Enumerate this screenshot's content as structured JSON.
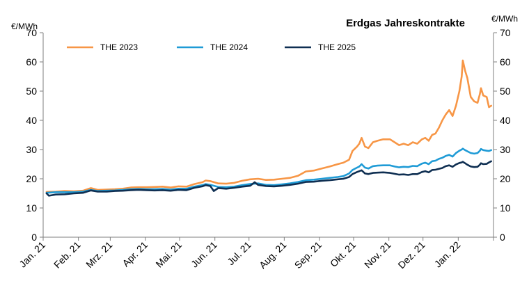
{
  "chart_data": {
    "type": "line",
    "title": "Erdgas Jahreskontrakte",
    "ylabel_left": "€/MWh",
    "ylabel_right": "€/MWh",
    "ylim": [
      0,
      70
    ],
    "yticks": [
      0,
      10,
      20,
      30,
      40,
      50,
      60,
      70
    ],
    "x_tick_labels": [
      "Jan. 21",
      "Feb. 21",
      "Mrz. 21",
      "Apr. 21",
      "Mai. 21",
      "Jun. 21",
      "Jul. 21",
      "Aug. 21",
      "Sep. 21",
      "Okt. 21",
      "Nov. 21",
      "Dez. 21",
      "Jan. 22"
    ],
    "x_range": [
      "2021-01-01",
      "2022-02-01"
    ],
    "legend_position": "top-left",
    "grid": false,
    "series": [
      {
        "name": "THE 2023",
        "color": "#f79646",
        "points": [
          [
            "2021-01-04",
            15.5
          ],
          [
            "2021-01-12",
            15.6
          ],
          [
            "2021-01-20",
            15.8
          ],
          [
            "2021-01-28",
            15.7
          ],
          [
            "2021-02-05",
            15.9
          ],
          [
            "2021-02-12",
            16.8
          ],
          [
            "2021-02-18",
            16.2
          ],
          [
            "2021-02-26",
            16.3
          ],
          [
            "2021-03-05",
            16.4
          ],
          [
            "2021-03-12",
            16.6
          ],
          [
            "2021-03-19",
            17.0
          ],
          [
            "2021-03-26",
            17.1
          ],
          [
            "2021-04-02",
            17.1
          ],
          [
            "2021-04-09",
            17.2
          ],
          [
            "2021-04-16",
            17.3
          ],
          [
            "2021-04-23",
            17.0
          ],
          [
            "2021-04-30",
            17.4
          ],
          [
            "2021-05-07",
            17.3
          ],
          [
            "2021-05-14",
            18.2
          ],
          [
            "2021-05-21",
            18.8
          ],
          [
            "2021-05-24",
            19.4
          ],
          [
            "2021-05-28",
            19.2
          ],
          [
            "2021-06-04",
            18.4
          ],
          [
            "2021-06-11",
            18.3
          ],
          [
            "2021-06-18",
            18.6
          ],
          [
            "2021-06-25",
            19.3
          ],
          [
            "2021-07-02",
            19.8
          ],
          [
            "2021-07-09",
            20.0
          ],
          [
            "2021-07-16",
            19.6
          ],
          [
            "2021-07-23",
            19.7
          ],
          [
            "2021-07-30",
            20.0
          ],
          [
            "2021-08-06",
            20.3
          ],
          [
            "2021-08-13",
            21.0
          ],
          [
            "2021-08-20",
            22.5
          ],
          [
            "2021-08-27",
            22.8
          ],
          [
            "2021-09-03",
            23.5
          ],
          [
            "2021-09-10",
            24.2
          ],
          [
            "2021-09-17",
            25.0
          ],
          [
            "2021-09-22",
            25.5
          ],
          [
            "2021-09-27",
            26.5
          ],
          [
            "2021-09-30",
            29.5
          ],
          [
            "2021-10-04",
            31.0
          ],
          [
            "2021-10-06",
            32.0
          ],
          [
            "2021-10-08",
            34.0
          ],
          [
            "2021-10-11",
            31.0
          ],
          [
            "2021-10-14",
            30.5
          ],
          [
            "2021-10-18",
            32.5
          ],
          [
            "2021-10-22",
            33.0
          ],
          [
            "2021-10-27",
            33.5
          ],
          [
            "2021-11-02",
            33.5
          ],
          [
            "2021-11-06",
            32.5
          ],
          [
            "2021-11-10",
            31.5
          ],
          [
            "2021-11-14",
            32.0
          ],
          [
            "2021-11-18",
            31.5
          ],
          [
            "2021-11-22",
            32.5
          ],
          [
            "2021-11-26",
            32.0
          ],
          [
            "2021-11-30",
            33.5
          ],
          [
            "2021-12-03",
            34.0
          ],
          [
            "2021-12-06",
            33.0
          ],
          [
            "2021-12-09",
            35.0
          ],
          [
            "2021-12-12",
            35.5
          ],
          [
            "2021-12-15",
            37.5
          ],
          [
            "2021-12-18",
            40.0
          ],
          [
            "2021-12-21",
            42.0
          ],
          [
            "2021-12-24",
            43.5
          ],
          [
            "2021-12-27",
            41.5
          ],
          [
            "2021-12-30",
            45.0
          ],
          [
            "2022-01-02",
            50.0
          ],
          [
            "2022-01-04",
            55.0
          ],
          [
            "2022-01-05",
            60.5
          ],
          [
            "2022-01-07",
            57.0
          ],
          [
            "2022-01-09",
            54.5
          ],
          [
            "2022-01-12",
            48.0
          ],
          [
            "2022-01-15",
            46.5
          ],
          [
            "2022-01-18",
            46.0
          ],
          [
            "2022-01-20",
            49.0
          ],
          [
            "2022-01-21",
            51.0
          ],
          [
            "2022-01-23",
            48.5
          ],
          [
            "2022-01-26",
            48.0
          ],
          [
            "2022-01-28",
            44.5
          ],
          [
            "2022-01-30",
            45.0
          ]
        ]
      },
      {
        "name": "THE 2024",
        "color": "#1f9bd6",
        "points": [
          [
            "2021-01-04",
            15.2
          ],
          [
            "2021-01-12",
            15.4
          ],
          [
            "2021-01-20",
            15.4
          ],
          [
            "2021-01-28",
            15.4
          ],
          [
            "2021-02-05",
            15.6
          ],
          [
            "2021-02-12",
            16.2
          ],
          [
            "2021-02-18",
            15.8
          ],
          [
            "2021-02-26",
            15.9
          ],
          [
            "2021-03-05",
            16.0
          ],
          [
            "2021-03-12",
            16.2
          ],
          [
            "2021-03-19",
            16.4
          ],
          [
            "2021-03-26",
            16.5
          ],
          [
            "2021-04-02",
            16.4
          ],
          [
            "2021-04-09",
            16.4
          ],
          [
            "2021-04-16",
            16.5
          ],
          [
            "2021-04-23",
            16.3
          ],
          [
            "2021-04-30",
            16.6
          ],
          [
            "2021-05-07",
            16.6
          ],
          [
            "2021-05-14",
            17.3
          ],
          [
            "2021-05-21",
            17.8
          ],
          [
            "2021-05-24",
            18.2
          ],
          [
            "2021-05-28",
            17.9
          ],
          [
            "2021-06-04",
            17.2
          ],
          [
            "2021-06-11",
            17.1
          ],
          [
            "2021-06-18",
            17.3
          ],
          [
            "2021-06-25",
            17.8
          ],
          [
            "2021-07-02",
            18.2
          ],
          [
            "2021-07-09",
            18.4
          ],
          [
            "2021-07-16",
            17.9
          ],
          [
            "2021-07-23",
            17.8
          ],
          [
            "2021-07-30",
            18.1
          ],
          [
            "2021-08-06",
            18.4
          ],
          [
            "2021-08-13",
            18.9
          ],
          [
            "2021-08-20",
            19.5
          ],
          [
            "2021-08-27",
            19.7
          ],
          [
            "2021-09-03",
            20.0
          ],
          [
            "2021-09-10",
            20.3
          ],
          [
            "2021-09-17",
            20.6
          ],
          [
            "2021-09-22",
            20.9
          ],
          [
            "2021-09-27",
            21.8
          ],
          [
            "2021-09-30",
            23.0
          ],
          [
            "2021-10-04",
            23.8
          ],
          [
            "2021-10-06",
            24.2
          ],
          [
            "2021-10-08",
            25.0
          ],
          [
            "2021-10-11",
            23.8
          ],
          [
            "2021-10-14",
            23.5
          ],
          [
            "2021-10-18",
            24.3
          ],
          [
            "2021-10-22",
            24.5
          ],
          [
            "2021-10-27",
            24.6
          ],
          [
            "2021-11-02",
            24.6
          ],
          [
            "2021-11-06",
            24.2
          ],
          [
            "2021-11-10",
            23.9
          ],
          [
            "2021-11-14",
            24.1
          ],
          [
            "2021-11-18",
            24.0
          ],
          [
            "2021-11-22",
            24.4
          ],
          [
            "2021-11-26",
            24.3
          ],
          [
            "2021-11-30",
            25.2
          ],
          [
            "2021-12-03",
            25.5
          ],
          [
            "2021-12-06",
            25.0
          ],
          [
            "2021-12-09",
            26.0
          ],
          [
            "2021-12-12",
            26.2
          ],
          [
            "2021-12-15",
            26.8
          ],
          [
            "2021-12-18",
            27.2
          ],
          [
            "2021-12-21",
            27.8
          ],
          [
            "2021-12-24",
            28.2
          ],
          [
            "2021-12-27",
            27.6
          ],
          [
            "2021-12-30",
            28.8
          ],
          [
            "2022-01-02",
            29.6
          ],
          [
            "2022-01-04",
            30.0
          ],
          [
            "2022-01-05",
            30.3
          ],
          [
            "2022-01-07",
            29.8
          ],
          [
            "2022-01-09",
            29.4
          ],
          [
            "2022-01-12",
            28.8
          ],
          [
            "2022-01-15",
            28.6
          ],
          [
            "2022-01-18",
            28.8
          ],
          [
            "2022-01-20",
            29.6
          ],
          [
            "2022-01-21",
            30.2
          ],
          [
            "2022-01-23",
            29.8
          ],
          [
            "2022-01-26",
            29.6
          ],
          [
            "2022-01-28",
            29.5
          ],
          [
            "2022-01-30",
            29.8
          ]
        ]
      },
      {
        "name": "THE 2025",
        "color": "#0f2f52",
        "points": [
          [
            "2021-01-04",
            15.0
          ],
          [
            "2021-01-06",
            14.2
          ],
          [
            "2021-01-12",
            14.6
          ],
          [
            "2021-01-20",
            14.7
          ],
          [
            "2021-01-28",
            15.0
          ],
          [
            "2021-02-05",
            15.2
          ],
          [
            "2021-02-12",
            16.0
          ],
          [
            "2021-02-18",
            15.6
          ],
          [
            "2021-02-26",
            15.6
          ],
          [
            "2021-03-05",
            15.8
          ],
          [
            "2021-03-12",
            15.9
          ],
          [
            "2021-03-19",
            16.1
          ],
          [
            "2021-03-26",
            16.2
          ],
          [
            "2021-04-02",
            16.1
          ],
          [
            "2021-04-09",
            16.0
          ],
          [
            "2021-04-16",
            16.1
          ],
          [
            "2021-04-23",
            15.9
          ],
          [
            "2021-04-30",
            16.2
          ],
          [
            "2021-05-07",
            16.1
          ],
          [
            "2021-05-14",
            16.9
          ],
          [
            "2021-05-21",
            17.4
          ],
          [
            "2021-05-24",
            17.8
          ],
          [
            "2021-05-28",
            17.5
          ],
          [
            "2021-05-31",
            15.8
          ],
          [
            "2021-06-04",
            16.8
          ],
          [
            "2021-06-11",
            16.6
          ],
          [
            "2021-06-18",
            16.9
          ],
          [
            "2021-06-25",
            17.3
          ],
          [
            "2021-07-02",
            17.6
          ],
          [
            "2021-07-06",
            18.8
          ],
          [
            "2021-07-09",
            17.9
          ],
          [
            "2021-07-16",
            17.5
          ],
          [
            "2021-07-23",
            17.4
          ],
          [
            "2021-07-30",
            17.6
          ],
          [
            "2021-08-06",
            17.9
          ],
          [
            "2021-08-13",
            18.3
          ],
          [
            "2021-08-20",
            18.9
          ],
          [
            "2021-08-27",
            19.0
          ],
          [
            "2021-09-03",
            19.3
          ],
          [
            "2021-09-10",
            19.5
          ],
          [
            "2021-09-17",
            19.8
          ],
          [
            "2021-09-22",
            20.0
          ],
          [
            "2021-09-27",
            20.6
          ],
          [
            "2021-09-30",
            21.6
          ],
          [
            "2021-10-04",
            22.3
          ],
          [
            "2021-10-06",
            22.6
          ],
          [
            "2021-10-08",
            22.9
          ],
          [
            "2021-10-11",
            21.8
          ],
          [
            "2021-10-14",
            21.6
          ],
          [
            "2021-10-18",
            22.0
          ],
          [
            "2021-10-22",
            22.1
          ],
          [
            "2021-10-27",
            22.2
          ],
          [
            "2021-11-02",
            22.0
          ],
          [
            "2021-11-06",
            21.7
          ],
          [
            "2021-11-10",
            21.4
          ],
          [
            "2021-11-14",
            21.5
          ],
          [
            "2021-11-18",
            21.3
          ],
          [
            "2021-11-22",
            21.6
          ],
          [
            "2021-11-26",
            21.6
          ],
          [
            "2021-11-30",
            22.3
          ],
          [
            "2021-12-03",
            22.6
          ],
          [
            "2021-12-06",
            22.2
          ],
          [
            "2021-12-09",
            23.0
          ],
          [
            "2021-12-12",
            23.1
          ],
          [
            "2021-12-15",
            23.4
          ],
          [
            "2021-12-18",
            23.7
          ],
          [
            "2021-12-21",
            24.3
          ],
          [
            "2021-12-24",
            24.6
          ],
          [
            "2021-12-27",
            24.1
          ],
          [
            "2021-12-30",
            24.9
          ],
          [
            "2022-01-02",
            25.4
          ],
          [
            "2022-01-04",
            25.6
          ],
          [
            "2022-01-05",
            25.8
          ],
          [
            "2022-01-07",
            25.3
          ],
          [
            "2022-01-09",
            24.8
          ],
          [
            "2022-01-12",
            24.2
          ],
          [
            "2022-01-15",
            24.0
          ],
          [
            "2022-01-18",
            24.1
          ],
          [
            "2022-01-20",
            24.8
          ],
          [
            "2022-01-21",
            25.3
          ],
          [
            "2022-01-23",
            25.0
          ],
          [
            "2022-01-26",
            25.1
          ],
          [
            "2022-01-28",
            25.6
          ],
          [
            "2022-01-30",
            26.0
          ]
        ]
      }
    ]
  }
}
